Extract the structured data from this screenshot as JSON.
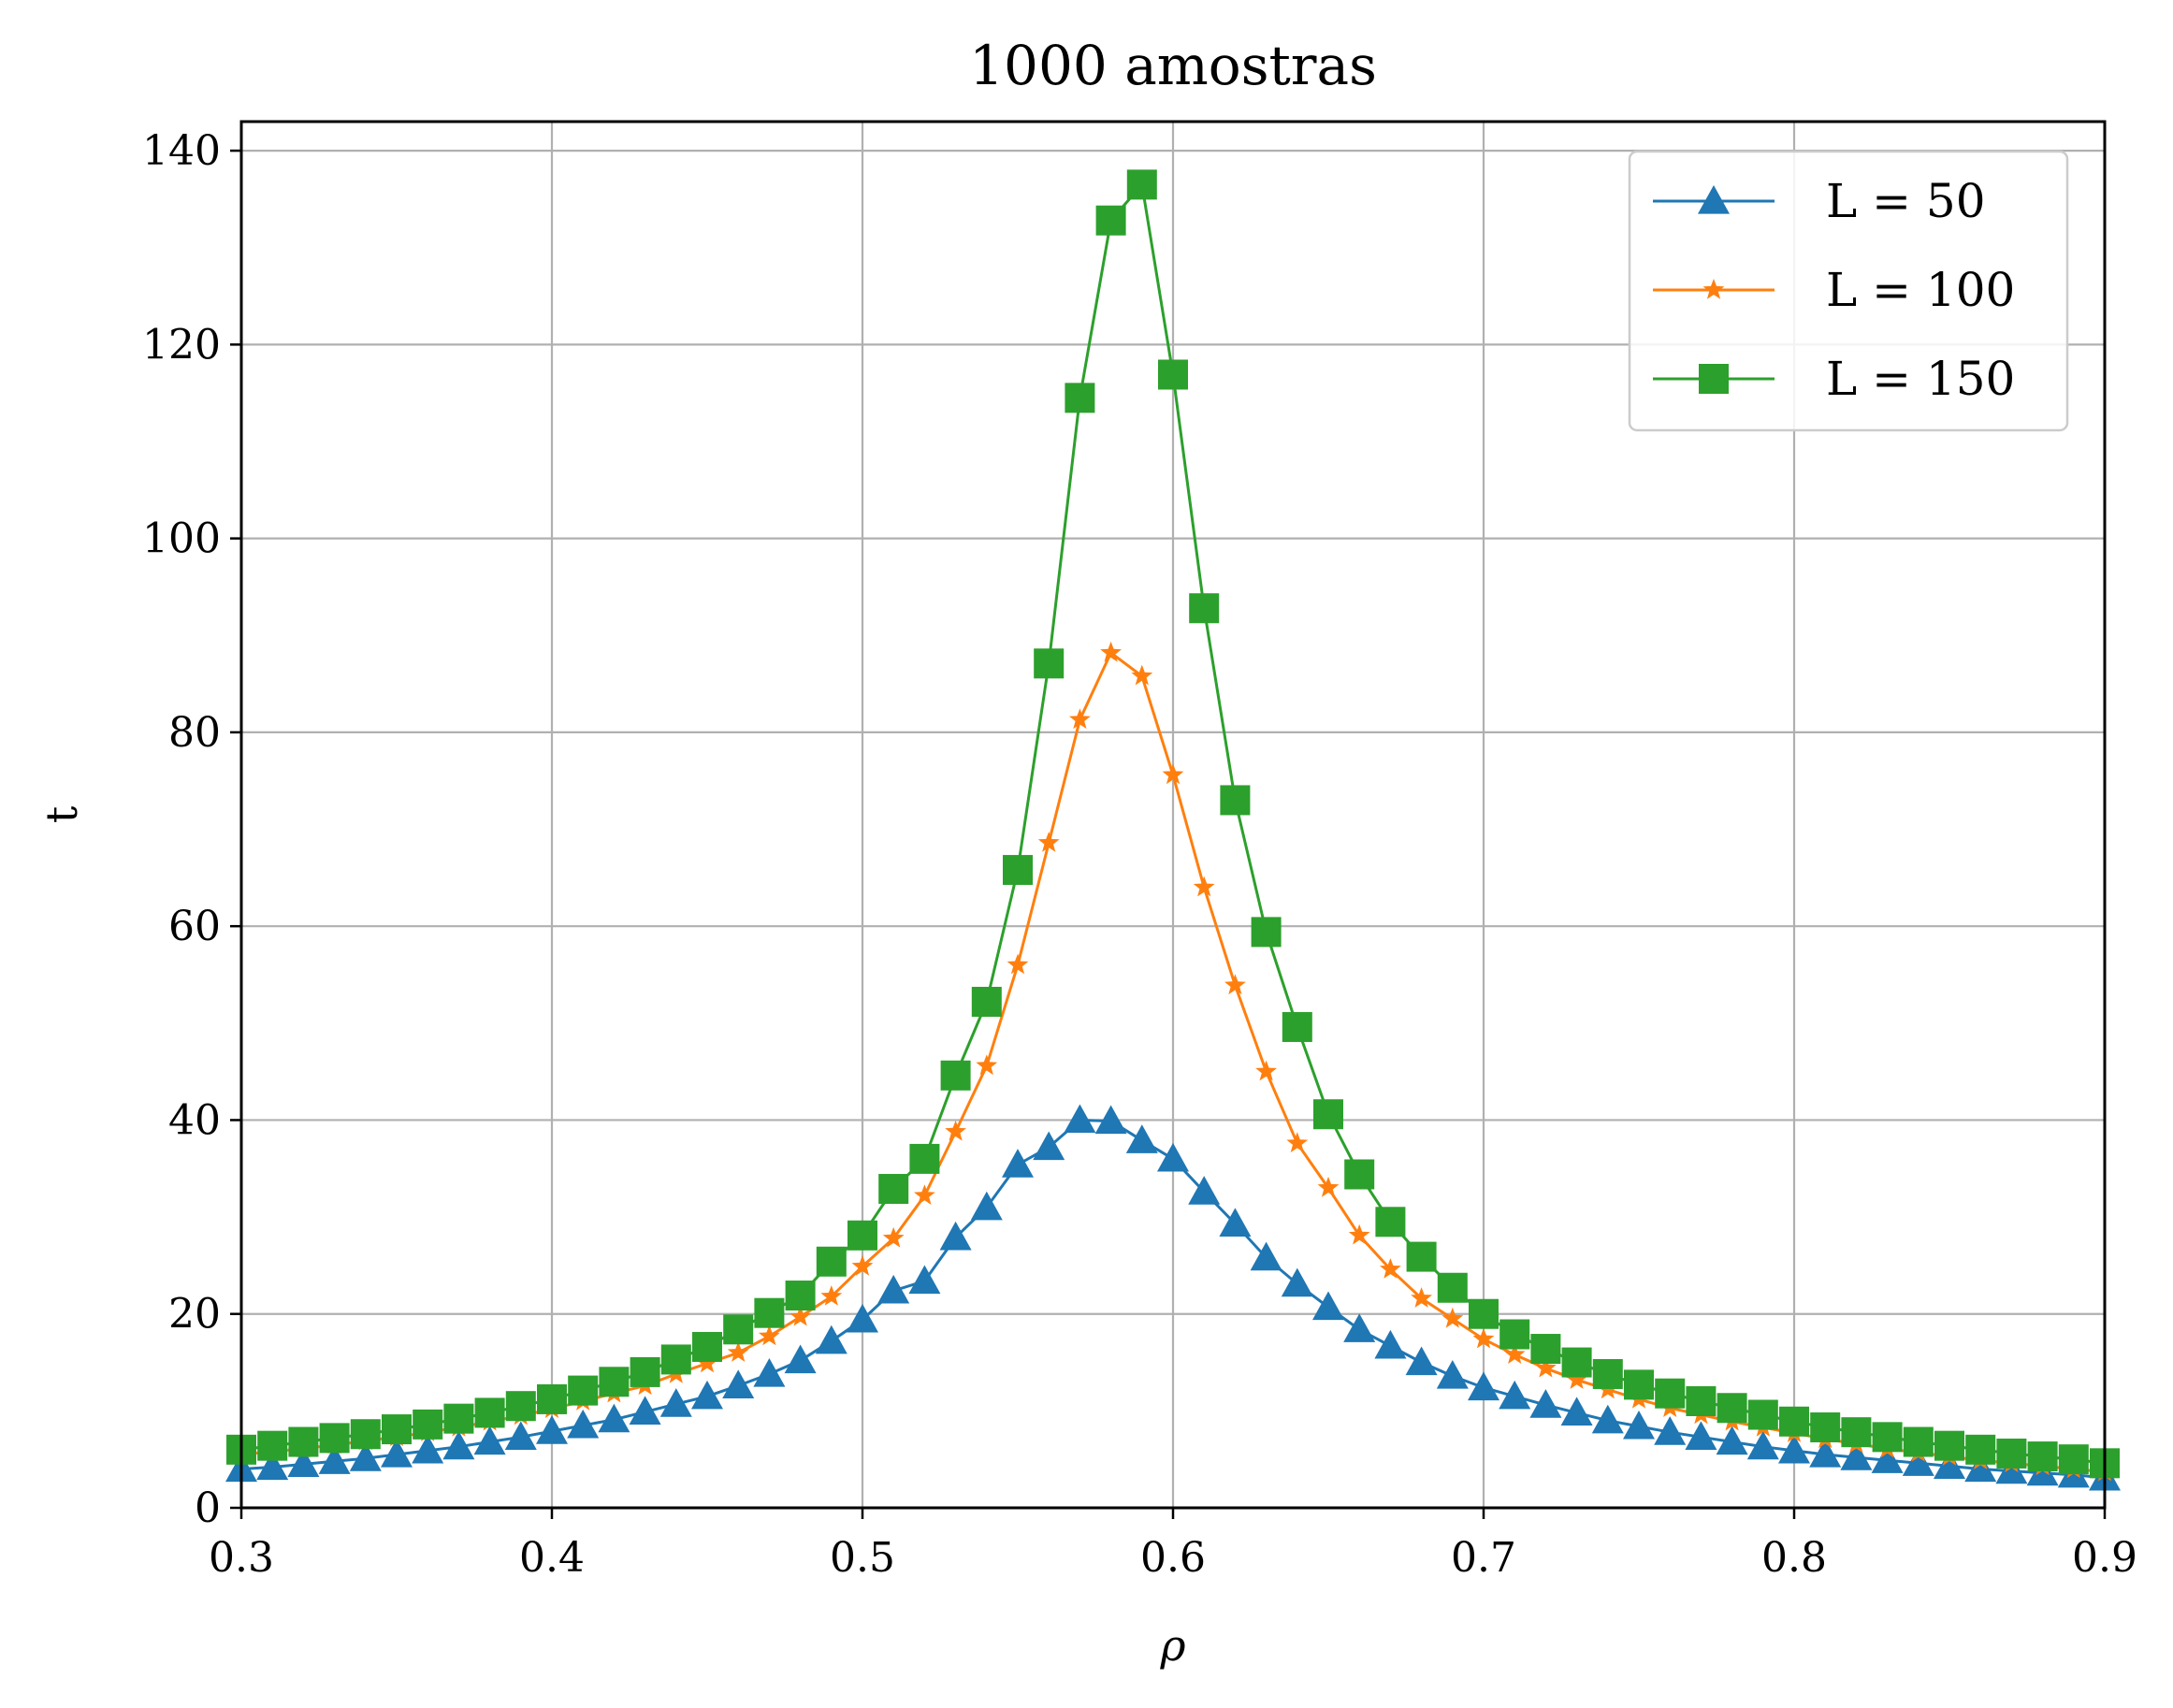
{
  "chart_data": {
    "type": "line",
    "title": "1000 amostras",
    "xlabel": "ρ",
    "ylabel": "t",
    "xlim": [
      0.3,
      0.9
    ],
    "ylim": [
      0,
      143
    ],
    "xticks": [
      "0.3",
      "0.4",
      "0.5",
      "0.6",
      "0.7",
      "0.8",
      "0.9"
    ],
    "yticks": [
      "0",
      "20",
      "40",
      "60",
      "80",
      "100",
      "120",
      "140"
    ],
    "grid": true,
    "legend_position": "top-right",
    "x": [
      0.3,
      0.31,
      0.32,
      0.33,
      0.34,
      0.35,
      0.36,
      0.37,
      0.38,
      0.39,
      0.4,
      0.41,
      0.42,
      0.43,
      0.44,
      0.45,
      0.46,
      0.47,
      0.48,
      0.49,
      0.5,
      0.51,
      0.52,
      0.53,
      0.54,
      0.55,
      0.56,
      0.57,
      0.58,
      0.59,
      0.6,
      0.61,
      0.62,
      0.63,
      0.64,
      0.65,
      0.66,
      0.67,
      0.68,
      0.69,
      0.7,
      0.71,
      0.72,
      0.73,
      0.74,
      0.75,
      0.76,
      0.77,
      0.78,
      0.79,
      0.8,
      0.81,
      0.82,
      0.83,
      0.84,
      0.85,
      0.86,
      0.87,
      0.88,
      0.89,
      0.9
    ],
    "series": [
      {
        "name": "L = 50",
        "color": "#1f77b4",
        "marker": "triangle",
        "values": [
          4.0,
          4.2,
          4.5,
          4.8,
          5.1,
          5.5,
          5.9,
          6.3,
          6.8,
          7.3,
          7.9,
          8.5,
          9.1,
          9.9,
          10.7,
          11.5,
          12.6,
          13.8,
          15.2,
          17.2,
          19.4,
          22.4,
          23.4,
          27.9,
          31.0,
          35.4,
          37.2,
          40.0,
          39.9,
          37.9,
          36.0,
          32.6,
          29.3,
          25.8,
          23.1,
          20.7,
          18.4,
          16.7,
          15.0,
          13.6,
          12.4,
          11.5,
          10.6,
          9.8,
          9.0,
          8.4,
          7.8,
          7.3,
          6.8,
          6.3,
          5.9,
          5.5,
          5.2,
          4.9,
          4.6,
          4.3,
          4.0,
          3.8,
          3.6,
          3.4,
          3.1
        ]
      },
      {
        "name": "L = 100",
        "color": "#ff7f0e",
        "marker": "star",
        "values": [
          5.5,
          5.8,
          6.1,
          6.5,
          6.9,
          7.3,
          7.8,
          8.3,
          8.9,
          9.5,
          10.2,
          11.0,
          11.8,
          12.6,
          13.8,
          14.9,
          16.0,
          17.7,
          19.7,
          21.8,
          24.9,
          27.8,
          32.2,
          38.8,
          45.6,
          56.0,
          68.6,
          81.3,
          88.2,
          85.8,
          75.6,
          64.0,
          53.9,
          45.0,
          37.6,
          33.0,
          28.1,
          24.6,
          21.6,
          19.5,
          17.4,
          15.8,
          14.4,
          13.2,
          12.2,
          11.2,
          10.3,
          9.6,
          8.9,
          8.3,
          7.7,
          7.1,
          6.6,
          6.1,
          5.7,
          5.3,
          4.9,
          4.6,
          4.3,
          4.0,
          3.7
        ]
      },
      {
        "name": "L = 150",
        "color": "#2ca02c",
        "marker": "square",
        "values": [
          6.0,
          6.4,
          6.8,
          7.2,
          7.6,
          8.1,
          8.6,
          9.2,
          9.8,
          10.5,
          11.2,
          12.1,
          13.0,
          14.0,
          15.3,
          16.6,
          18.4,
          20.1,
          21.9,
          25.4,
          28.1,
          32.9,
          36.0,
          44.6,
          52.2,
          65.8,
          87.1,
          114.5,
          132.8,
          136.5,
          116.9,
          92.8,
          73.0,
          59.4,
          49.6,
          40.6,
          34.4,
          29.5,
          25.9,
          22.7,
          20.0,
          17.9,
          16.4,
          15.0,
          13.8,
          12.7,
          11.8,
          11.0,
          10.3,
          9.6,
          8.9,
          8.3,
          7.8,
          7.3,
          6.8,
          6.4,
          6.0,
          5.6,
          5.3,
          5.0,
          4.6
        ]
      }
    ]
  }
}
